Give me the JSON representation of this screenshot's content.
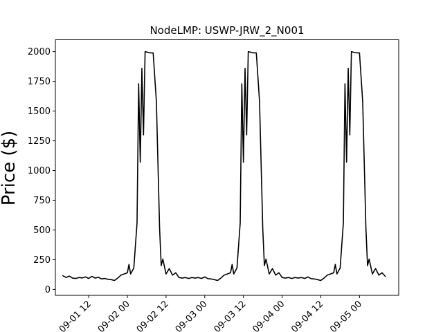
{
  "chart_data": {
    "type": "line",
    "title": "NodeLMP: USWP-JRW_2_N001",
    "xlabel": "",
    "ylabel": "Price ($)",
    "xlim": [
      "2025-09-01 01:40",
      "2025-09-05 12:10"
    ],
    "ylim": [
      -50,
      2100
    ],
    "grid": false,
    "legend": "none",
    "x_ticks": [
      {
        "value": "2025-09-01 12:00",
        "label": "09-01 12"
      },
      {
        "value": "2025-09-02 00:00",
        "label": "09-02 00"
      },
      {
        "value": "2025-09-02 12:00",
        "label": "09-02 12"
      },
      {
        "value": "2025-09-03 00:00",
        "label": "09-03 00"
      },
      {
        "value": "2025-09-03 12:00",
        "label": "09-03 12"
      },
      {
        "value": "2025-09-04 00:00",
        "label": "09-04 00"
      },
      {
        "value": "2025-09-04 12:00",
        "label": "09-04 12"
      },
      {
        "value": "2025-09-05 00:00",
        "label": "09-05 00"
      }
    ],
    "y_ticks": [
      0,
      250,
      500,
      750,
      1000,
      1250,
      1500,
      1750,
      2000
    ],
    "series": [
      {
        "color": "#000000",
        "points": [
          [
            "2025-09-01 04:00",
            115
          ],
          [
            "2025-09-01 05:00",
            100
          ],
          [
            "2025-09-01 06:00",
            112
          ],
          [
            "2025-09-01 07:00",
            95
          ],
          [
            "2025-09-01 08:00",
            92
          ],
          [
            "2025-09-01 09:00",
            100
          ],
          [
            "2025-09-01 10:00",
            96
          ],
          [
            "2025-09-01 11:00",
            105
          ],
          [
            "2025-09-01 12:00",
            92
          ],
          [
            "2025-09-01 13:00",
            110
          ],
          [
            "2025-09-01 14:00",
            95
          ],
          [
            "2025-09-01 15:00",
            102
          ],
          [
            "2025-09-01 16:00",
            88
          ],
          [
            "2025-09-01 17:00",
            92
          ],
          [
            "2025-09-01 18:00",
            85
          ],
          [
            "2025-09-01 19:00",
            82
          ],
          [
            "2025-09-01 20:00",
            75
          ],
          [
            "2025-09-01 21:00",
            95
          ],
          [
            "2025-09-01 22:00",
            120
          ],
          [
            "2025-09-01 23:00",
            130
          ],
          [
            "2025-09-02 00:00",
            140
          ],
          [
            "2025-09-02 00:30",
            210
          ],
          [
            "2025-09-02 01:00",
            130
          ],
          [
            "2025-09-02 02:00",
            180
          ],
          [
            "2025-09-02 03:00",
            560
          ],
          [
            "2025-09-02 03:30",
            1730
          ],
          [
            "2025-09-02 04:00",
            1070
          ],
          [
            "2025-09-02 04:30",
            1860
          ],
          [
            "2025-09-02 05:00",
            1300
          ],
          [
            "2025-09-02 05:30",
            2000
          ],
          [
            "2025-09-02 07:00",
            1990
          ],
          [
            "2025-09-02 08:00",
            1990
          ],
          [
            "2025-09-02 09:00",
            1580
          ],
          [
            "2025-09-02 10:00",
            510
          ],
          [
            "2025-09-02 10:30",
            200
          ],
          [
            "2025-09-02 11:00",
            255
          ],
          [
            "2025-09-02 12:00",
            130
          ],
          [
            "2025-09-02 13:00",
            175
          ],
          [
            "2025-09-02 14:00",
            120
          ],
          [
            "2025-09-02 15:00",
            140
          ],
          [
            "2025-09-02 16:00",
            100
          ],
          [
            "2025-09-02 17:00",
            95
          ],
          [
            "2025-09-02 18:00",
            100
          ],
          [
            "2025-09-02 19:00",
            92
          ],
          [
            "2025-09-02 20:00",
            100
          ],
          [
            "2025-09-02 21:00",
            95
          ],
          [
            "2025-09-02 22:00",
            100
          ],
          [
            "2025-09-02 23:00",
            92
          ],
          [
            "2025-09-03 00:00",
            105
          ],
          [
            "2025-09-03 01:00",
            90
          ],
          [
            "2025-09-03 02:00",
            88
          ],
          [
            "2025-09-03 03:00",
            82
          ],
          [
            "2025-09-03 04:00",
            75
          ],
          [
            "2025-09-03 05:00",
            95
          ],
          [
            "2025-09-03 06:00",
            120
          ],
          [
            "2025-09-03 07:00",
            130
          ],
          [
            "2025-09-03 08:00",
            140
          ],
          [
            "2025-09-03 08:30",
            210
          ],
          [
            "2025-09-03 09:00",
            130
          ],
          [
            "2025-09-03 10:00",
            180
          ],
          [
            "2025-09-03 11:00",
            560
          ],
          [
            "2025-09-03 11:30",
            1730
          ],
          [
            "2025-09-03 12:00",
            1070
          ],
          [
            "2025-09-03 12:30",
            1860
          ],
          [
            "2025-09-03 13:00",
            1300
          ],
          [
            "2025-09-03 13:30",
            2000
          ],
          [
            "2025-09-03 15:00",
            1990
          ],
          [
            "2025-09-03 16:00",
            1990
          ],
          [
            "2025-09-03 17:00",
            1580
          ],
          [
            "2025-09-03 18:00",
            510
          ],
          [
            "2025-09-03 18:30",
            200
          ],
          [
            "2025-09-03 19:00",
            255
          ],
          [
            "2025-09-03 20:00",
            130
          ],
          [
            "2025-09-03 21:00",
            175
          ],
          [
            "2025-09-03 22:00",
            120
          ],
          [
            "2025-09-03 23:00",
            140
          ],
          [
            "2025-09-04 00:00",
            100
          ],
          [
            "2025-09-04 01:00",
            95
          ],
          [
            "2025-09-04 02:00",
            100
          ],
          [
            "2025-09-04 03:00",
            92
          ],
          [
            "2025-09-04 04:00",
            100
          ],
          [
            "2025-09-04 05:00",
            95
          ],
          [
            "2025-09-04 06:00",
            100
          ],
          [
            "2025-09-04 07:00",
            92
          ],
          [
            "2025-09-04 08:00",
            105
          ],
          [
            "2025-09-04 09:00",
            90
          ],
          [
            "2025-09-04 10:00",
            88
          ],
          [
            "2025-09-04 11:00",
            82
          ],
          [
            "2025-09-04 12:00",
            75
          ],
          [
            "2025-09-04 13:00",
            95
          ],
          [
            "2025-09-04 14:00",
            120
          ],
          [
            "2025-09-04 15:00",
            130
          ],
          [
            "2025-09-04 16:00",
            140
          ],
          [
            "2025-09-04 16:30",
            210
          ],
          [
            "2025-09-04 17:00",
            130
          ],
          [
            "2025-09-04 18:00",
            180
          ],
          [
            "2025-09-04 19:00",
            560
          ],
          [
            "2025-09-04 19:30",
            1730
          ],
          [
            "2025-09-04 20:00",
            1070
          ],
          [
            "2025-09-04 20:30",
            1860
          ],
          [
            "2025-09-04 21:00",
            1300
          ],
          [
            "2025-09-04 21:30",
            2000
          ],
          [
            "2025-09-04 23:00",
            1990
          ],
          [
            "2025-09-05 00:00",
            1990
          ],
          [
            "2025-09-05 01:00",
            1580
          ],
          [
            "2025-09-05 02:00",
            510
          ],
          [
            "2025-09-05 02:30",
            200
          ],
          [
            "2025-09-05 03:00",
            255
          ],
          [
            "2025-09-05 04:00",
            130
          ],
          [
            "2025-09-05 05:00",
            175
          ],
          [
            "2025-09-05 06:00",
            120
          ],
          [
            "2025-09-05 07:00",
            140
          ],
          [
            "2025-09-05 08:00",
            110
          ]
        ]
      }
    ]
  }
}
